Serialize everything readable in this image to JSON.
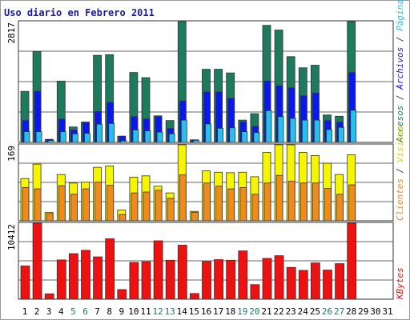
{
  "chart_data": {
    "type": "bar",
    "title": "Uso diario en Febrero 2011",
    "x": [
      "1",
      "2",
      "3",
      "4",
      "5",
      "6",
      "7",
      "8",
      "9",
      "10",
      "11",
      "12",
      "13",
      "14",
      "15",
      "16",
      "17",
      "18",
      "19",
      "20",
      "21",
      "22",
      "23",
      "24",
      "25",
      "26",
      "27",
      "28",
      "29",
      "30",
      "31"
    ],
    "weekend_days": [
      "5",
      "6",
      "12",
      "13",
      "19",
      "20",
      "26",
      "27"
    ],
    "colors": {
      "accesos": "#1d7a5c",
      "archivos": "#0a17f0",
      "paginas": "#27bfee",
      "visitas": "#f5f500",
      "clientes": "#f08a1a",
      "kbytes": "#ee1111",
      "weekday_label": "#000000",
      "weekend_label": "#1a7a6a"
    },
    "panels": [
      {
        "id": "top",
        "ymax_label": "2817",
        "ymax": 2817,
        "legend": [
          {
            "text": "Accesos",
            "color": "#1d7a5c"
          },
          {
            "text": " / ",
            "color": "#333333"
          },
          {
            "text": "Archivos",
            "color": "#0a17f0"
          },
          {
            "text": " / ",
            "color": "#333333"
          },
          {
            "text": "Páginas",
            "color": "#27bfee"
          }
        ],
        "series": [
          {
            "name": "Accesos",
            "values": [
              1190,
              2117,
              70,
              1430,
              360,
              475,
              2030,
              2045,
              145,
              1630,
              1510,
              620,
              510,
              2817,
              60,
              1705,
              1705,
              1620,
              520,
              670,
              2730,
              2620,
              2000,
              1740,
              1800,
              640,
              610,
              2817,
              0,
              0,
              0
            ]
          },
          {
            "name": "Archivos",
            "values": [
              510,
              1190,
              70,
              540,
              290,
              460,
              720,
              930,
              145,
              600,
              545,
              600,
              325,
              965,
              60,
              1175,
              1175,
              1025,
              475,
              370,
              1430,
              1320,
              1270,
              1085,
              1150,
              510,
              470,
              1630,
              0,
              0,
              0
            ]
          },
          {
            "name": "Páginas",
            "values": [
              250,
              250,
              45,
              250,
              200,
              210,
              425,
              440,
              40,
              290,
              270,
              240,
              200,
              520,
              50,
              430,
              330,
              340,
              250,
              230,
              740,
              600,
              560,
              520,
              520,
              300,
              350,
              750,
              0,
              0,
              0
            ]
          }
        ]
      },
      {
        "id": "middle",
        "ymax_label": "169",
        "ymax": 169,
        "legend": [
          {
            "text": "Clientes",
            "color": "#f08a1a"
          },
          {
            "text": " / ",
            "color": "#333333"
          },
          {
            "text": "Visitas",
            "color": "#d8d800"
          }
        ],
        "series": [
          {
            "name": "Visitas",
            "values": [
              94,
              126,
              19,
              103,
              84,
              86,
              119,
              122,
              24,
              97,
              100,
              77,
              62,
              169,
              21,
              111,
              108,
              107,
              108,
              98,
              152,
              169,
              169,
              152,
              145,
              128,
              103,
              147,
              0,
              0,
              0
            ]
          },
          {
            "name": "Clientes",
            "values": [
              74,
              71,
              16,
              78,
              59,
              71,
              86,
              79,
              14,
              62,
              64,
              68,
              50,
              102,
              19,
              84,
              77,
              71,
              74,
              59,
              84,
              101,
              88,
              84,
              84,
              72,
              59,
              80,
              0,
              0,
              0
            ]
          }
        ]
      },
      {
        "id": "bottom",
        "ymax_label": "10412",
        "ymax": 10412,
        "legend": [
          {
            "text": "KBytes",
            "color": "#ee1111"
          }
        ],
        "series": [
          {
            "name": "KBytes",
            "values": [
              4550,
              10412,
              740,
              5380,
              6240,
              6700,
              5800,
              8280,
              1320,
              5040,
              5140,
              8000,
              5340,
              7400,
              780,
              5150,
              5420,
              5340,
              6620,
              2000,
              5590,
              5960,
              4360,
              3950,
              4970,
              3990,
              4870,
              10412,
              0,
              0,
              0
            ]
          }
        ]
      }
    ]
  }
}
